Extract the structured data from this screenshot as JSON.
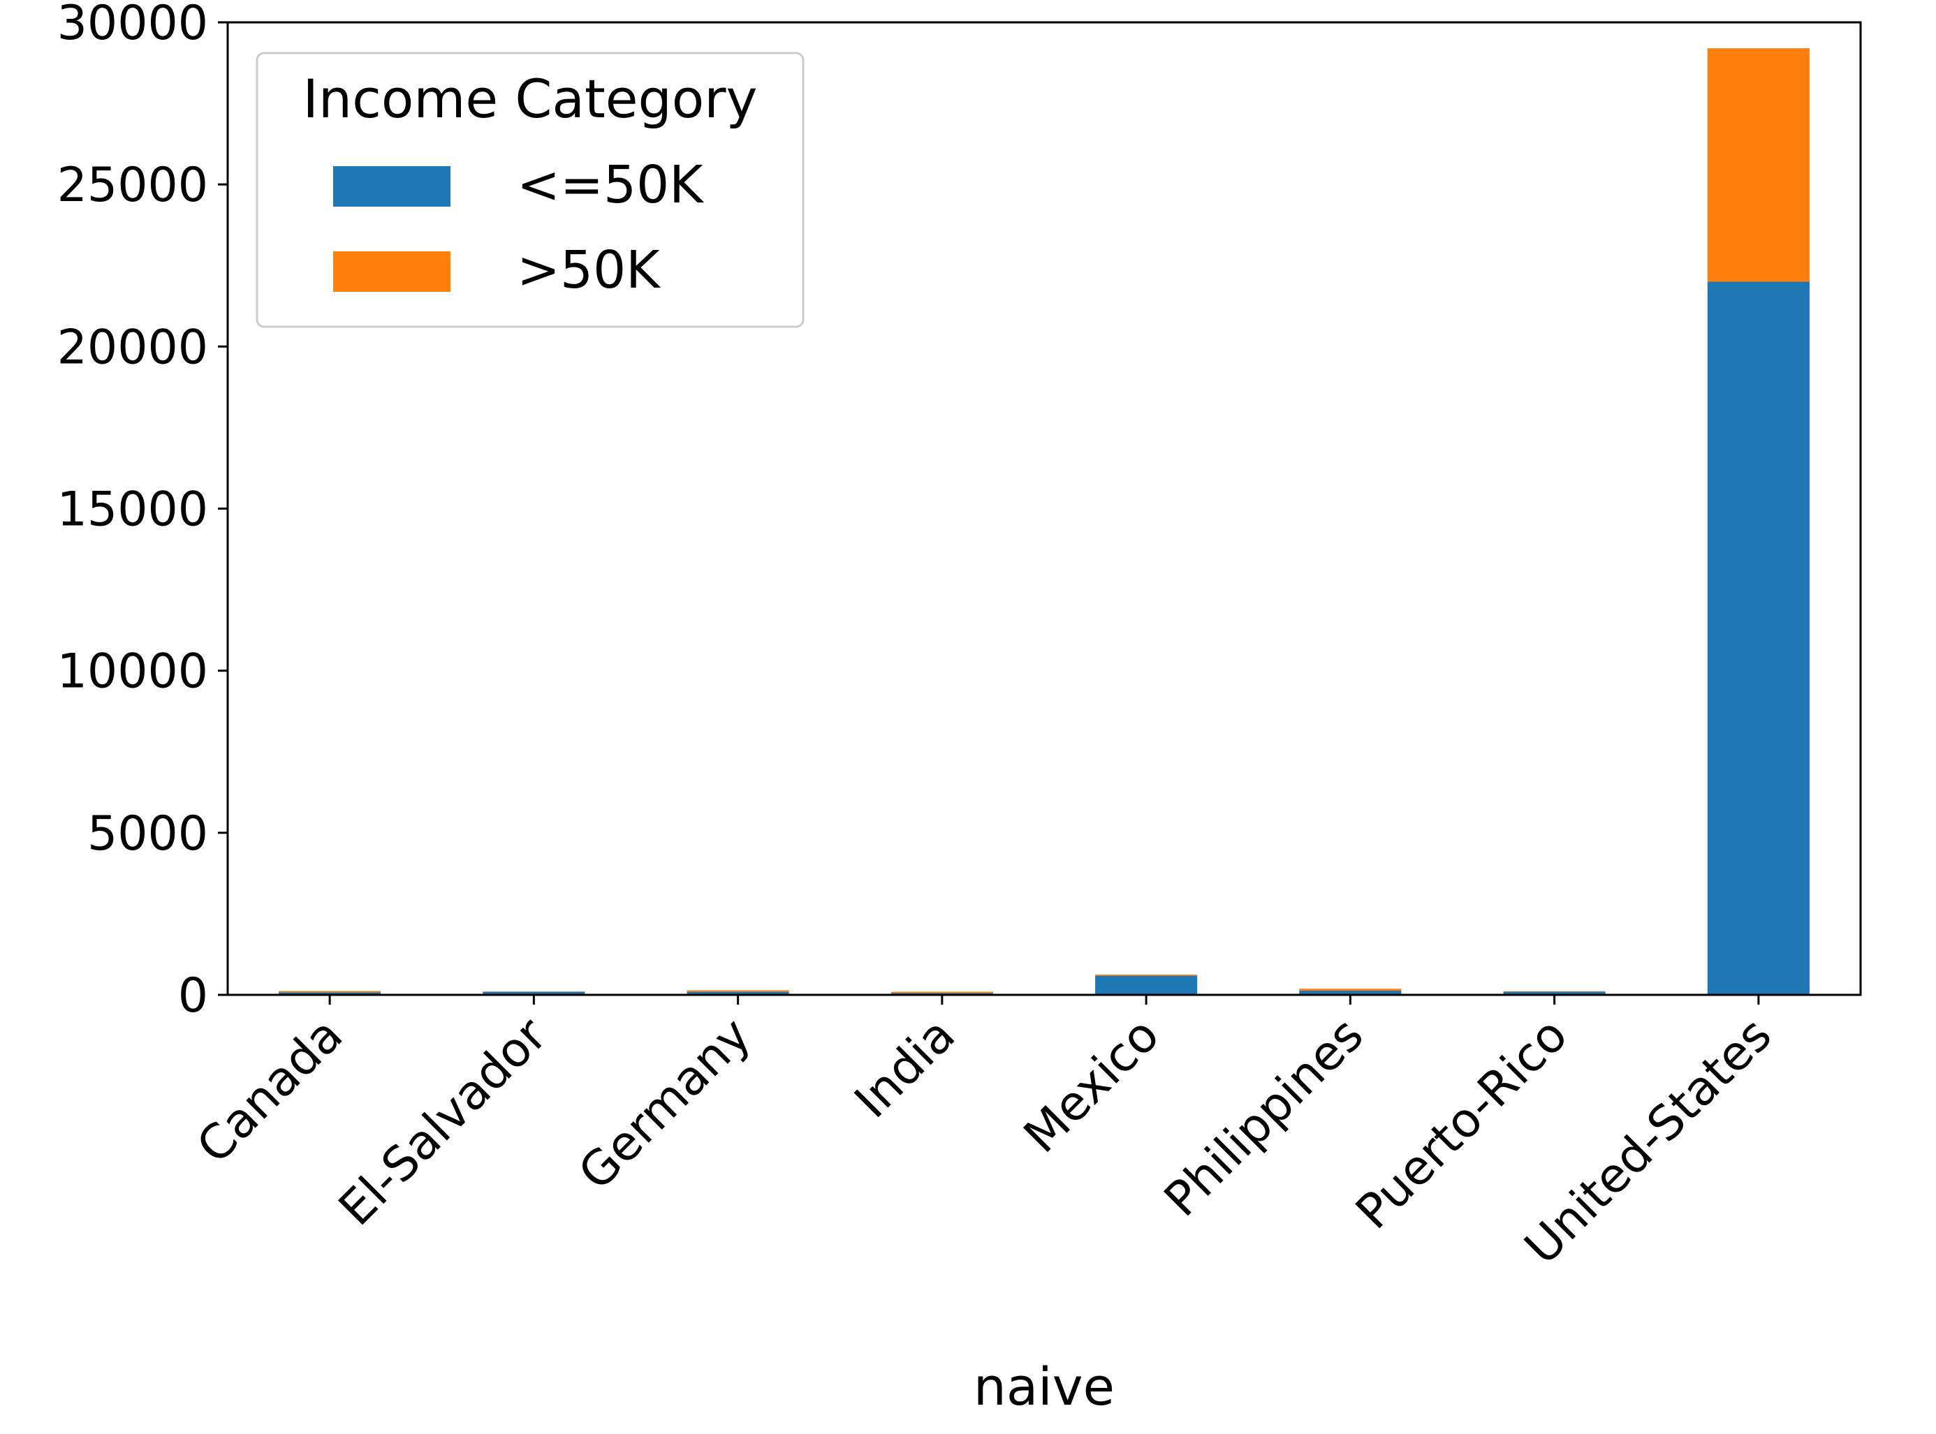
{
  "chart_data": {
    "type": "bar",
    "stacked": true,
    "title": "",
    "xlabel": "naive",
    "ylabel": "",
    "categories": [
      "Canada",
      "El-Salvador",
      "Germany",
      "India",
      "Mexico",
      "Philippines",
      "Puerto-Rico",
      "United-States"
    ],
    "series": [
      {
        "name": "<=50K",
        "color": "#1f77b4",
        "values": [
          80,
          95,
          95,
          55,
          590,
          130,
          100,
          22000
        ]
      },
      {
        "name": ">50K",
        "color": "#ff7f0e",
        "values": [
          40,
          10,
          45,
          40,
          35,
          60,
          15,
          7200
        ]
      }
    ],
    "ylim": [
      0,
      30000
    ],
    "yticks": [
      "0",
      "5000",
      "10000",
      "15000",
      "20000",
      "25000",
      "30000"
    ],
    "ytick_values": [
      0,
      5000,
      10000,
      15000,
      20000,
      25000,
      30000
    ],
    "grid": false,
    "legend": {
      "title": "Income Category",
      "position": "top-left"
    }
  }
}
